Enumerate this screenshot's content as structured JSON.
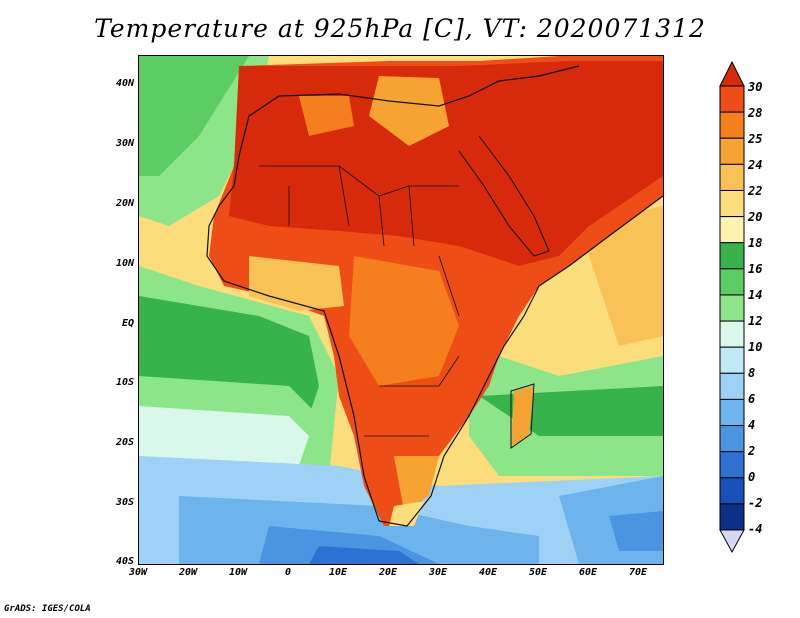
{
  "title": "Temperature at 925hPa [C], VT: 2020071312",
  "footer": "GrADS: IGES/COLA",
  "map": {
    "variable": "Temperature at 925hPa",
    "units": "C",
    "valid_time": "2020071312",
    "lon_range": [
      -30,
      75
    ],
    "lat_range": [
      -40,
      45
    ],
    "x_ticks": [
      "30W",
      "20W",
      "10W",
      "0",
      "10E",
      "20E",
      "30E",
      "40E",
      "50E",
      "60E",
      "70E"
    ],
    "y_ticks": [
      "40N",
      "30N",
      "20N",
      "10N",
      "EQ",
      "10S",
      "20S",
      "30S",
      "40S"
    ]
  },
  "colorbar": {
    "labels": [
      "30",
      "28",
      "25",
      "24",
      "22",
      "20",
      "18",
      "16",
      "14",
      "12",
      "10",
      "8",
      "6",
      "4",
      "2",
      "0",
      "-2",
      "-4"
    ],
    "colors": [
      "#d62a0a",
      "#ee4d15",
      "#f57f1c",
      "#f7a331",
      "#f9c254",
      "#fbdd7c",
      "#fbf3ae",
      "#36b34a",
      "#5ccd62",
      "#8de58a",
      "#d9f7ea",
      "#c0e9f8",
      "#9dd1f5",
      "#6db4ec",
      "#4a94e1",
      "#2d72d2",
      "#1750b8",
      "#0c2f8a",
      "#d8d8f5"
    ]
  }
}
